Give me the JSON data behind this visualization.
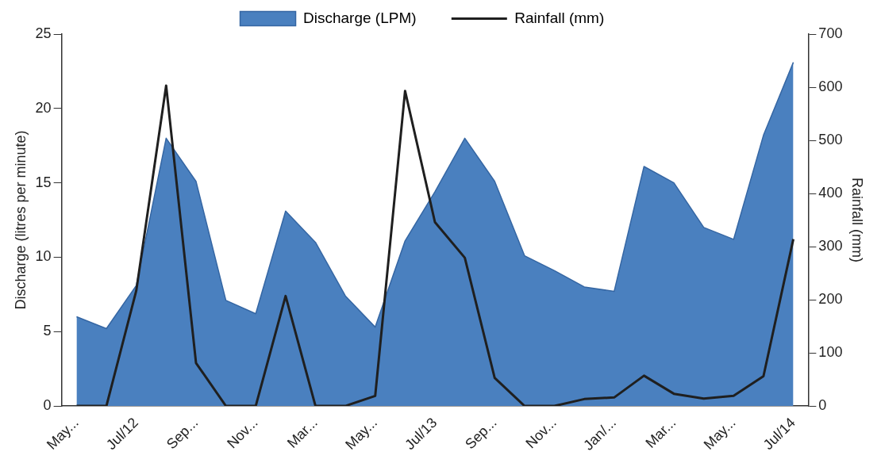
{
  "chart_data": {
    "type": "area",
    "categories": [
      "May...",
      null,
      "Jul/12",
      null,
      "Sep...",
      null,
      "Nov...",
      null,
      "Mar...",
      null,
      "May...",
      null,
      "Jul/13",
      null,
      "Sep...",
      null,
      "Nov...",
      null,
      "Jan/...",
      null,
      "Mar...",
      null,
      "May...",
      null,
      "Jul/14"
    ],
    "series": [
      {
        "name": "Discharge (LPM)",
        "type": "area",
        "color": "#4a80bf",
        "values": [
          6.0,
          5.2,
          8.1,
          18.0,
          15.1,
          7.1,
          6.2,
          13.1,
          11.0,
          7.4,
          5.3,
          11.1,
          14.4,
          18.0,
          15.1,
          10.1,
          9.1,
          8.0,
          7.7,
          16.1,
          15.0,
          12.0,
          11.2,
          18.2,
          23.1
        ]
      },
      {
        "name": "Rainfall (mm)",
        "type": "line",
        "axis": "y2",
        "color": "#1f1f1f",
        "values": [
          0,
          0,
          217,
          603,
          81,
          0,
          0,
          207,
          0,
          0,
          19,
          593,
          346,
          279,
          53,
          0,
          0,
          13,
          16,
          57,
          23,
          14,
          19,
          56,
          314
        ]
      }
    ],
    "ylabel": "Discharge (litres per minute)",
    "y2label": "Rainfall (mm)",
    "ylim": [
      0,
      25
    ],
    "yticks": [
      0,
      5,
      10,
      15,
      20,
      25
    ],
    "y2lim": [
      0,
      700
    ],
    "y2ticks": [
      0,
      100,
      200,
      300,
      400,
      500,
      600,
      700
    ],
    "legend": "top",
    "grid": false,
    "marker": "none",
    "line_style": "solid"
  }
}
